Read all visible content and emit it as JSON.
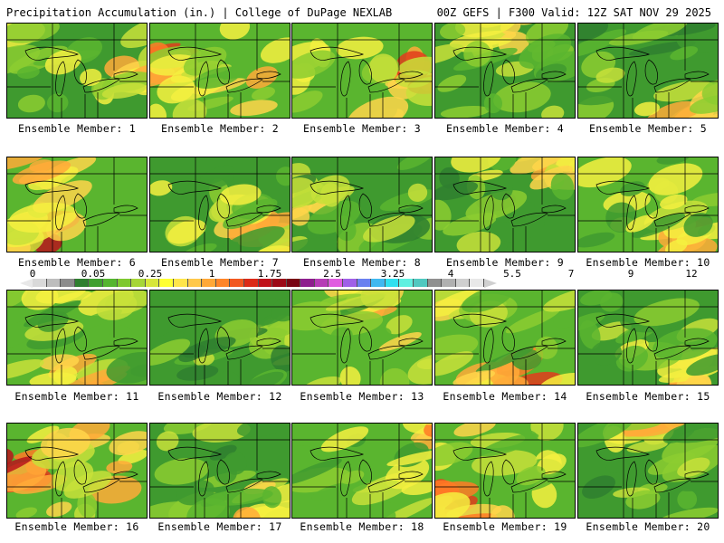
{
  "header": {
    "left": "Precipitation Accumulation (in.) | College of DuPage NEXLAB",
    "right": "00Z GEFS | F300 Valid: 12Z SAT NOV 29 2025"
  },
  "members": [
    {
      "label": "Ensemble Member: 1",
      "wetness": 0.45,
      "hotspot": "east"
    },
    {
      "label": "Ensemble Member: 2",
      "wetness": 0.75,
      "hotspot": "west"
    },
    {
      "label": "Ensemble Member: 3",
      "wetness": 0.7,
      "hotspot": "east"
    },
    {
      "label": "Ensemble Member: 4",
      "wetness": 0.3,
      "hotspot": "north"
    },
    {
      "label": "Ensemble Member: 5",
      "wetness": 0.35,
      "hotspot": "southeast"
    },
    {
      "label": "Ensemble Member: 6",
      "wetness": 0.8,
      "hotspot": "southwest"
    },
    {
      "label": "Ensemble Member: 7",
      "wetness": 0.45,
      "hotspot": "southeast"
    },
    {
      "label": "Ensemble Member: 8",
      "wetness": 0.3,
      "hotspot": "west"
    },
    {
      "label": "Ensemble Member: 9",
      "wetness": 0.4,
      "hotspot": "northeast"
    },
    {
      "label": "Ensemble Member: 10",
      "wetness": 0.5,
      "hotspot": "southeast"
    },
    {
      "label": "Ensemble Member: 11",
      "wetness": 0.5,
      "hotspot": "south"
    },
    {
      "label": "Ensemble Member: 12",
      "wetness": 0.3,
      "hotspot": "east"
    },
    {
      "label": "Ensemble Member: 13",
      "wetness": 0.55,
      "hotspot": "north"
    },
    {
      "label": "Ensemble Member: 14",
      "wetness": 0.6,
      "hotspot": "south"
    },
    {
      "label": "Ensemble Member: 15",
      "wetness": 0.45,
      "hotspot": "southeast"
    },
    {
      "label": "Ensemble Member: 16",
      "wetness": 0.8,
      "hotspot": "west"
    },
    {
      "label": "Ensemble Member: 17",
      "wetness": 0.45,
      "hotspot": "southeast"
    },
    {
      "label": "Ensemble Member: 18",
      "wetness": 0.55,
      "hotspot": "northeast"
    },
    {
      "label": "Ensemble Member: 19",
      "wetness": 0.7,
      "hotspot": "southwest"
    },
    {
      "label": "Ensemble Member: 20",
      "wetness": 0.4,
      "hotspot": "north"
    }
  ],
  "scale": {
    "labels": [
      "0",
      "0.05",
      "0.25",
      "1",
      "1.75",
      "2.5",
      "3.25",
      "4",
      "5.5",
      "7",
      "9",
      "12"
    ],
    "colors": [
      "#d9d9d9",
      "#bdbdbd",
      "#8c8c8c",
      "#2f7f2f",
      "#3f9f2f",
      "#55b530",
      "#7ec830",
      "#a6d637",
      "#d7e63a",
      "#ffff33",
      "#ffe54a",
      "#ffc84a",
      "#ffa838",
      "#ff8528",
      "#f25820",
      "#dc2a18",
      "#c0101a",
      "#9c0818",
      "#780414",
      "#8e1e8e",
      "#b63cb6",
      "#e05ce0",
      "#a060e8",
      "#6a80f0",
      "#40b8f0",
      "#30e0f0",
      "#60f0e0",
      "#50c8c0",
      "#909090",
      "#b0b0b0",
      "#cfcfcf",
      "#e8e8e8"
    ]
  }
}
